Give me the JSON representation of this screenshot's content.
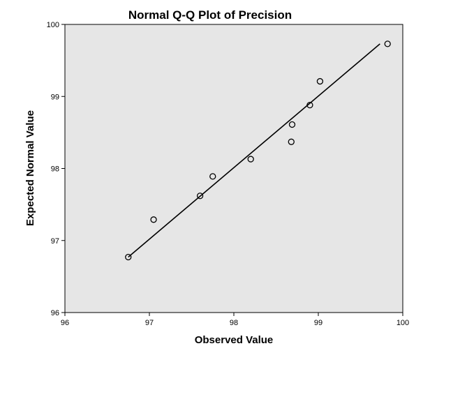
{
  "chart_data": {
    "type": "scatter",
    "title": "Normal Q-Q Plot of Precision",
    "xlabel": "Observed Value",
    "ylabel": "Expected Normal Value",
    "xlim": [
      96,
      100
    ],
    "ylim": [
      96,
      100
    ],
    "x_ticks": [
      "96",
      "97",
      "98",
      "99",
      "100"
    ],
    "y_ticks": [
      "96",
      "97",
      "98",
      "99",
      "100"
    ],
    "grid": false,
    "background_color": "#e6e6e6",
    "points": [
      {
        "x": 96.75,
        "y": 96.77
      },
      {
        "x": 97.05,
        "y": 97.29
      },
      {
        "x": 97.6,
        "y": 97.62
      },
      {
        "x": 97.75,
        "y": 97.89
      },
      {
        "x": 98.2,
        "y": 98.13
      },
      {
        "x": 98.68,
        "y": 98.37
      },
      {
        "x": 98.69,
        "y": 98.61
      },
      {
        "x": 98.9,
        "y": 98.88
      },
      {
        "x": 99.02,
        "y": 99.21
      },
      {
        "x": 99.82,
        "y": 99.73
      }
    ],
    "reference_line": {
      "from": [
        96.75,
        96.77
      ],
      "to": [
        99.73,
        99.73
      ]
    }
  }
}
